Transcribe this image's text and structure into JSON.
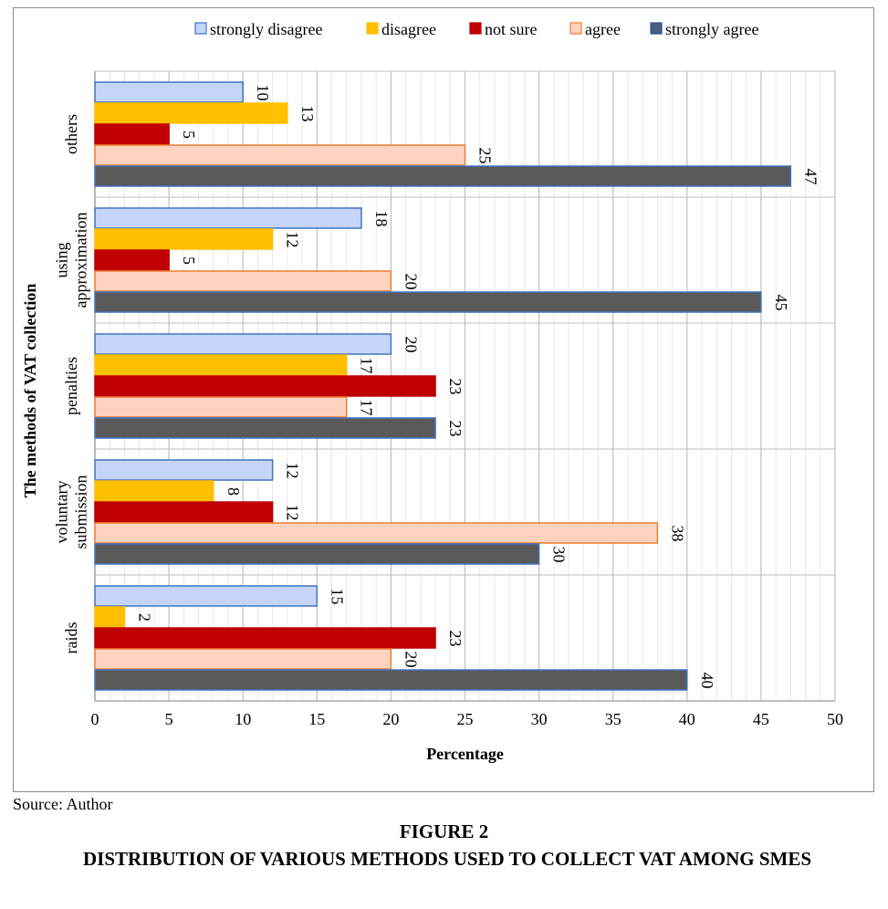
{
  "caption": {
    "source": "Source: Author",
    "figure_number": "FIGURE 2",
    "figure_title": "DISTRIBUTION OF VARIOUS METHODS USED TO COLLECT VAT AMONG SMES"
  },
  "colors": {
    "strongly_disagree": "#c5d5f7",
    "disagree": "#ffc000",
    "not_sure": "#c00000",
    "agree": "#fdd3c0",
    "strongly_agree": "#595959",
    "grid": "#d9d9d9",
    "axis": "#7f7f7f"
  },
  "chart_data": {
    "type": "bar",
    "orientation": "horizontal",
    "title": "",
    "xlabel": "Percentage",
    "ylabel": "The methods of VAT collection",
    "xlim": [
      0,
      50
    ],
    "xticks": [
      "0",
      "5",
      "10",
      "15",
      "20",
      "25",
      "30",
      "35",
      "40",
      "45",
      "50"
    ],
    "grid": true,
    "legend": "top",
    "categories": [
      [
        "others"
      ],
      [
        "using",
        "approximation"
      ],
      [
        "penalties"
      ],
      [
        "voluntary",
        "submission"
      ],
      [
        "raids"
      ]
    ],
    "series": [
      {
        "name": "strongly disagree",
        "values": [
          10,
          18,
          20,
          12,
          15
        ]
      },
      {
        "name": "disagree",
        "values": [
          13,
          12,
          17,
          8,
          2
        ]
      },
      {
        "name": "not sure",
        "values": [
          5,
          5,
          23,
          12,
          23
        ]
      },
      {
        "name": "agree",
        "values": [
          25,
          20,
          17,
          38,
          20
        ]
      },
      {
        "name": "strongly agree",
        "values": [
          47,
          45,
          23,
          30,
          40
        ]
      }
    ]
  }
}
